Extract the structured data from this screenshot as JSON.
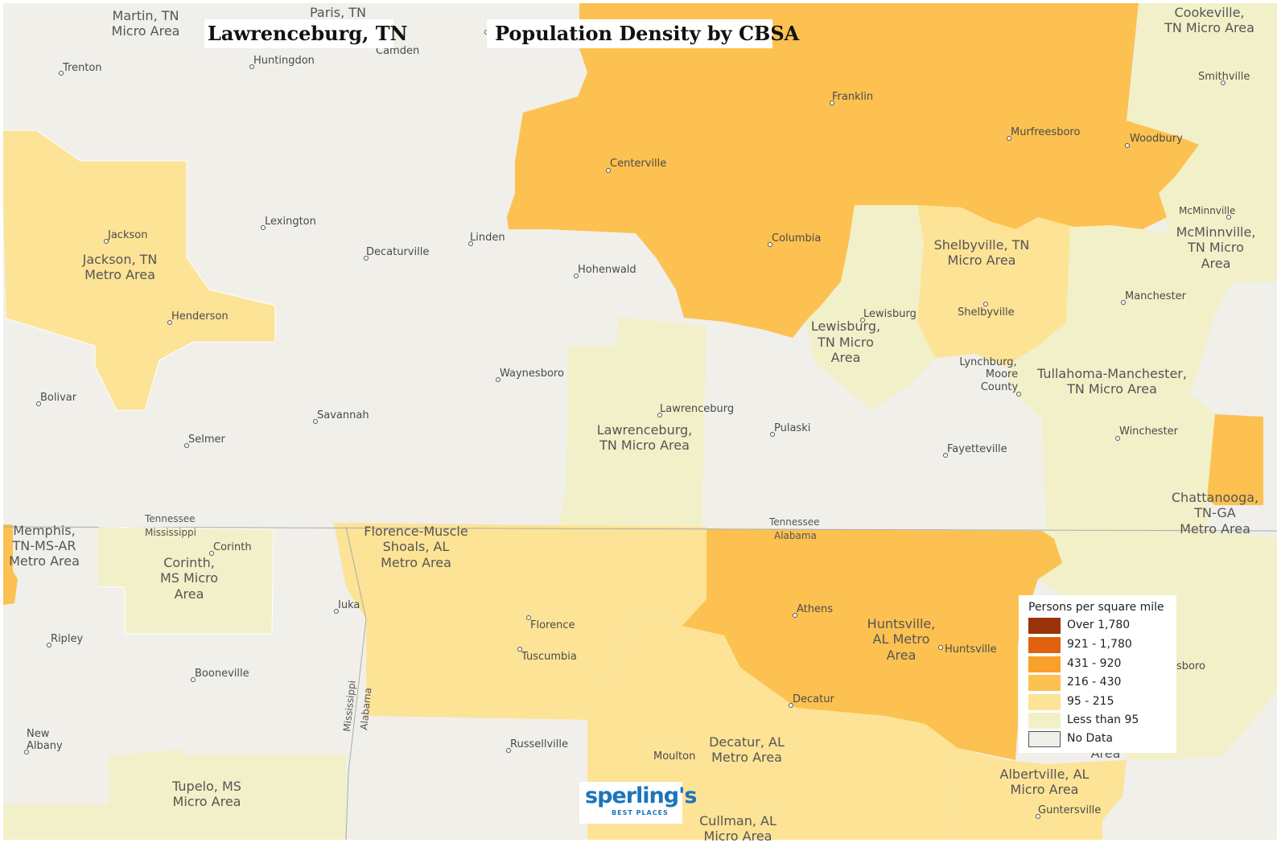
{
  "title_left": "Lawrenceburg, TN",
  "title_right": "Population Density by CBSA",
  "colors": {
    "no_data": "#f0efea",
    "lt95": "#f2f0c8",
    "c95_215": "#fde396",
    "c216_430": "#fcc150",
    "c431_920": "#f9a02b",
    "c921_1780": "#e0620f",
    "over1780": "#9a3309"
  },
  "legend": {
    "title": "Persons per square mile",
    "items": [
      {
        "label": "Over 1,780",
        "color": "#9a3309"
      },
      {
        "label": "921 - 1,780",
        "color": "#e0620f"
      },
      {
        "label": "431 - 920",
        "color": "#f9a02b"
      },
      {
        "label": "216 - 430",
        "color": "#fcc150"
      },
      {
        "label": "95 - 215",
        "color": "#fde396"
      },
      {
        "label": "Less than 95",
        "color": "#f2f0c8"
      },
      {
        "label": "No Data",
        "color": "#f0efea"
      }
    ]
  },
  "metro_labels": [
    [
      "Martin, TN",
      "Micro Area"
    ],
    [
      "Paris, TN"
    ],
    [
      "Cookeville,",
      "TN Micro Area"
    ],
    [
      "Jackson, TN",
      "Metro Area"
    ],
    [
      "Shelbyville, TN",
      "Micro Area"
    ],
    [
      "McMinnville,",
      "TN Micro",
      "Area"
    ],
    [
      "Lewisburg,",
      "TN Micro",
      "Area"
    ],
    [
      "Tullahoma-Manchester,",
      "TN Micro Area"
    ],
    [
      "Lawrenceburg,",
      "TN Micro Area"
    ],
    [
      "Chattanooga,",
      "TN-GA",
      "Metro Area"
    ],
    [
      "Memphis,",
      "TN-MS-AR",
      "Metro Area"
    ],
    [
      "Corinth,",
      "MS Micro",
      "Area"
    ],
    [
      "Florence-Muscle",
      "Shoals, AL",
      "Metro Area"
    ],
    [
      "Huntsville,",
      "AL Metro",
      "Area"
    ],
    [
      "Decatur, AL",
      "Metro Area"
    ],
    [
      "Albertville, AL",
      "Micro Area"
    ],
    [
      "Tupelo, MS",
      "Micro Area"
    ],
    [
      "Cullman, AL",
      "Micro Area"
    ]
  ],
  "cities": [
    "Trenton",
    "Huntingdon",
    "Camden",
    "Smithville",
    "Franklin",
    "Murfreesboro",
    "Woodbury",
    "Centerville",
    "McMinnville",
    "Jackson",
    "Lexington",
    "Linden",
    "Decaturville",
    "Columbia",
    "Hohenwald",
    "Henderson",
    "Lewisburg",
    "Shelbyville",
    "Manchester",
    "Lynchburg, Moore County",
    "Waynesboro",
    "Bolivar",
    "Savannah",
    "Lawrenceburg",
    "Pulaski",
    "Winchester",
    "Selmer",
    "Fayetteville",
    "Corinth",
    "Iuka",
    "Athens",
    "Florence",
    "Ripley",
    "Huntsville",
    "Tuscumbia",
    "Booneville",
    "Decatur",
    "New Albany",
    "Russellville",
    "Moulton",
    "Guntersville"
  ],
  "partial_labels": {
    "scottsboro_fragment": "sboro",
    "area_fragment": "Area"
  },
  "state_labels": {
    "tn_ms": [
      "Tennessee",
      "Mississippi"
    ],
    "tn_al": [
      "Tennessee",
      "Alabama"
    ],
    "ms_al": [
      "Mississippi",
      "Alabama"
    ]
  },
  "logo": {
    "name": "sperling's",
    "tagline": "BEST PLACES"
  }
}
